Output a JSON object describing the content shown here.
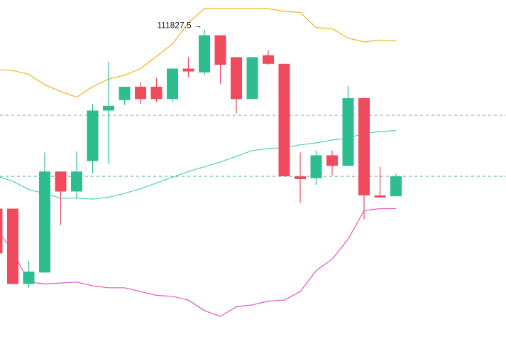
{
  "chart_data": {
    "type": "candlestick",
    "colors": {
      "up": "#2ebd8f",
      "down": "#ef4b5c",
      "bb_upper": "#f2b01e",
      "bb_middle": "#4fd1b4",
      "bb_lower": "#e057c8",
      "ref_line_gray": "#9ea8b0",
      "ref_line_teal": "#3aa89a"
    },
    "ylim": [
      110090,
      112000
    ],
    "candles": [
      {
        "i": 0,
        "o": 110905,
        "h": 110905,
        "l": 110670,
        "c": 110670
      },
      {
        "i": 1,
        "o": 110905,
        "h": 110905,
        "l": 110510,
        "c": 110510
      },
      {
        "i": 2,
        "o": 110510,
        "h": 110630,
        "l": 110490,
        "c": 110575
      },
      {
        "i": 3,
        "o": 110570,
        "h": 111200,
        "l": 110570,
        "c": 111100
      },
      {
        "i": 4,
        "o": 111100,
        "h": 111100,
        "l": 110820,
        "c": 110995
      },
      {
        "i": 5,
        "o": 110995,
        "h": 111205,
        "l": 110960,
        "c": 111100
      },
      {
        "i": 6,
        "o": 111155,
        "h": 111455,
        "l": 111090,
        "c": 111420
      },
      {
        "i": 7,
        "o": 111420,
        "h": 111675,
        "l": 111140,
        "c": 111445
      },
      {
        "i": 8,
        "o": 111475,
        "h": 111535,
        "l": 111450,
        "c": 111545
      },
      {
        "i": 9,
        "o": 111545,
        "h": 111570,
        "l": 111455,
        "c": 111480
      },
      {
        "i": 10,
        "o": 111545,
        "h": 111590,
        "l": 111465,
        "c": 111480
      },
      {
        "i": 11,
        "o": 111480,
        "h": 111640,
        "l": 111465,
        "c": 111640
      },
      {
        "i": 12,
        "o": 111640,
        "h": 111700,
        "l": 111595,
        "c": 111625
      },
      {
        "i": 13,
        "o": 111620,
        "h": 111845,
        "l": 111605,
        "c": 111815
      },
      {
        "i": 14,
        "o": 111815,
        "h": 111815,
        "l": 111560,
        "c": 111660
      },
      {
        "i": 15,
        "o": 111700,
        "h": 111700,
        "l": 111405,
        "c": 111480
      },
      {
        "i": 16,
        "o": 111480,
        "h": 111700,
        "l": 111480,
        "c": 111700
      },
      {
        "i": 17,
        "o": 111710,
        "h": 111735,
        "l": 111660,
        "c": 111665
      },
      {
        "i": 18,
        "o": 111665,
        "h": 111665,
        "l": 111075,
        "c": 111075
      },
      {
        "i": 19,
        "o": 111075,
        "h": 111200,
        "l": 110935,
        "c": 111060
      },
      {
        "i": 20,
        "o": 111065,
        "h": 111210,
        "l": 111030,
        "c": 111185
      },
      {
        "i": 21,
        "o": 111185,
        "h": 111210,
        "l": 111080,
        "c": 111130
      },
      {
        "i": 22,
        "o": 111130,
        "h": 111550,
        "l": 111130,
        "c": 111485
      },
      {
        "i": 23,
        "o": 111485,
        "h": 111490,
        "l": 110850,
        "c": 110975
      },
      {
        "i": 24,
        "o": 110975,
        "h": 111125,
        "l": 110970,
        "c": 110970
      },
      {
        "i": 25,
        "o": 110970,
        "h": 111090,
        "l": 110970,
        "c": 111075
      }
    ],
    "bb_upper": [
      111635,
      111630,
      111610,
      111555,
      111520,
      111490,
      111545,
      111585,
      111605,
      111640,
      111705,
      111770,
      111880,
      111955,
      111955,
      111955,
      111955,
      111955,
      111940,
      111935,
      111855,
      111850,
      111800,
      111780,
      111790,
      111785
    ],
    "bb_middle": [
      111075,
      111050,
      111005,
      110985,
      110960,
      110960,
      110955,
      110965,
      110985,
      111010,
      111040,
      111070,
      111100,
      111125,
      111150,
      111180,
      111210,
      111220,
      111225,
      111240,
      111250,
      111265,
      111275,
      111300,
      111310,
      111315
    ],
    "bb_lower": [
      110800,
      110680,
      110520,
      110510,
      110515,
      110520,
      110500,
      110490,
      110490,
      110470,
      110450,
      110445,
      110425,
      110370,
      110340,
      110390,
      110400,
      110420,
      110425,
      110470,
      110580,
      110640,
      110745,
      110895,
      110905,
      110905
    ],
    "ref_lines": [
      {
        "value": 111395,
        "style": "dashed",
        "color": "ref_line_gray"
      },
      {
        "value": 111075,
        "style": "dashed",
        "color": "ref_line_teal"
      }
    ],
    "peak_marker": {
      "label": "111827.5",
      "arrow": "→",
      "candle": 13
    }
  }
}
